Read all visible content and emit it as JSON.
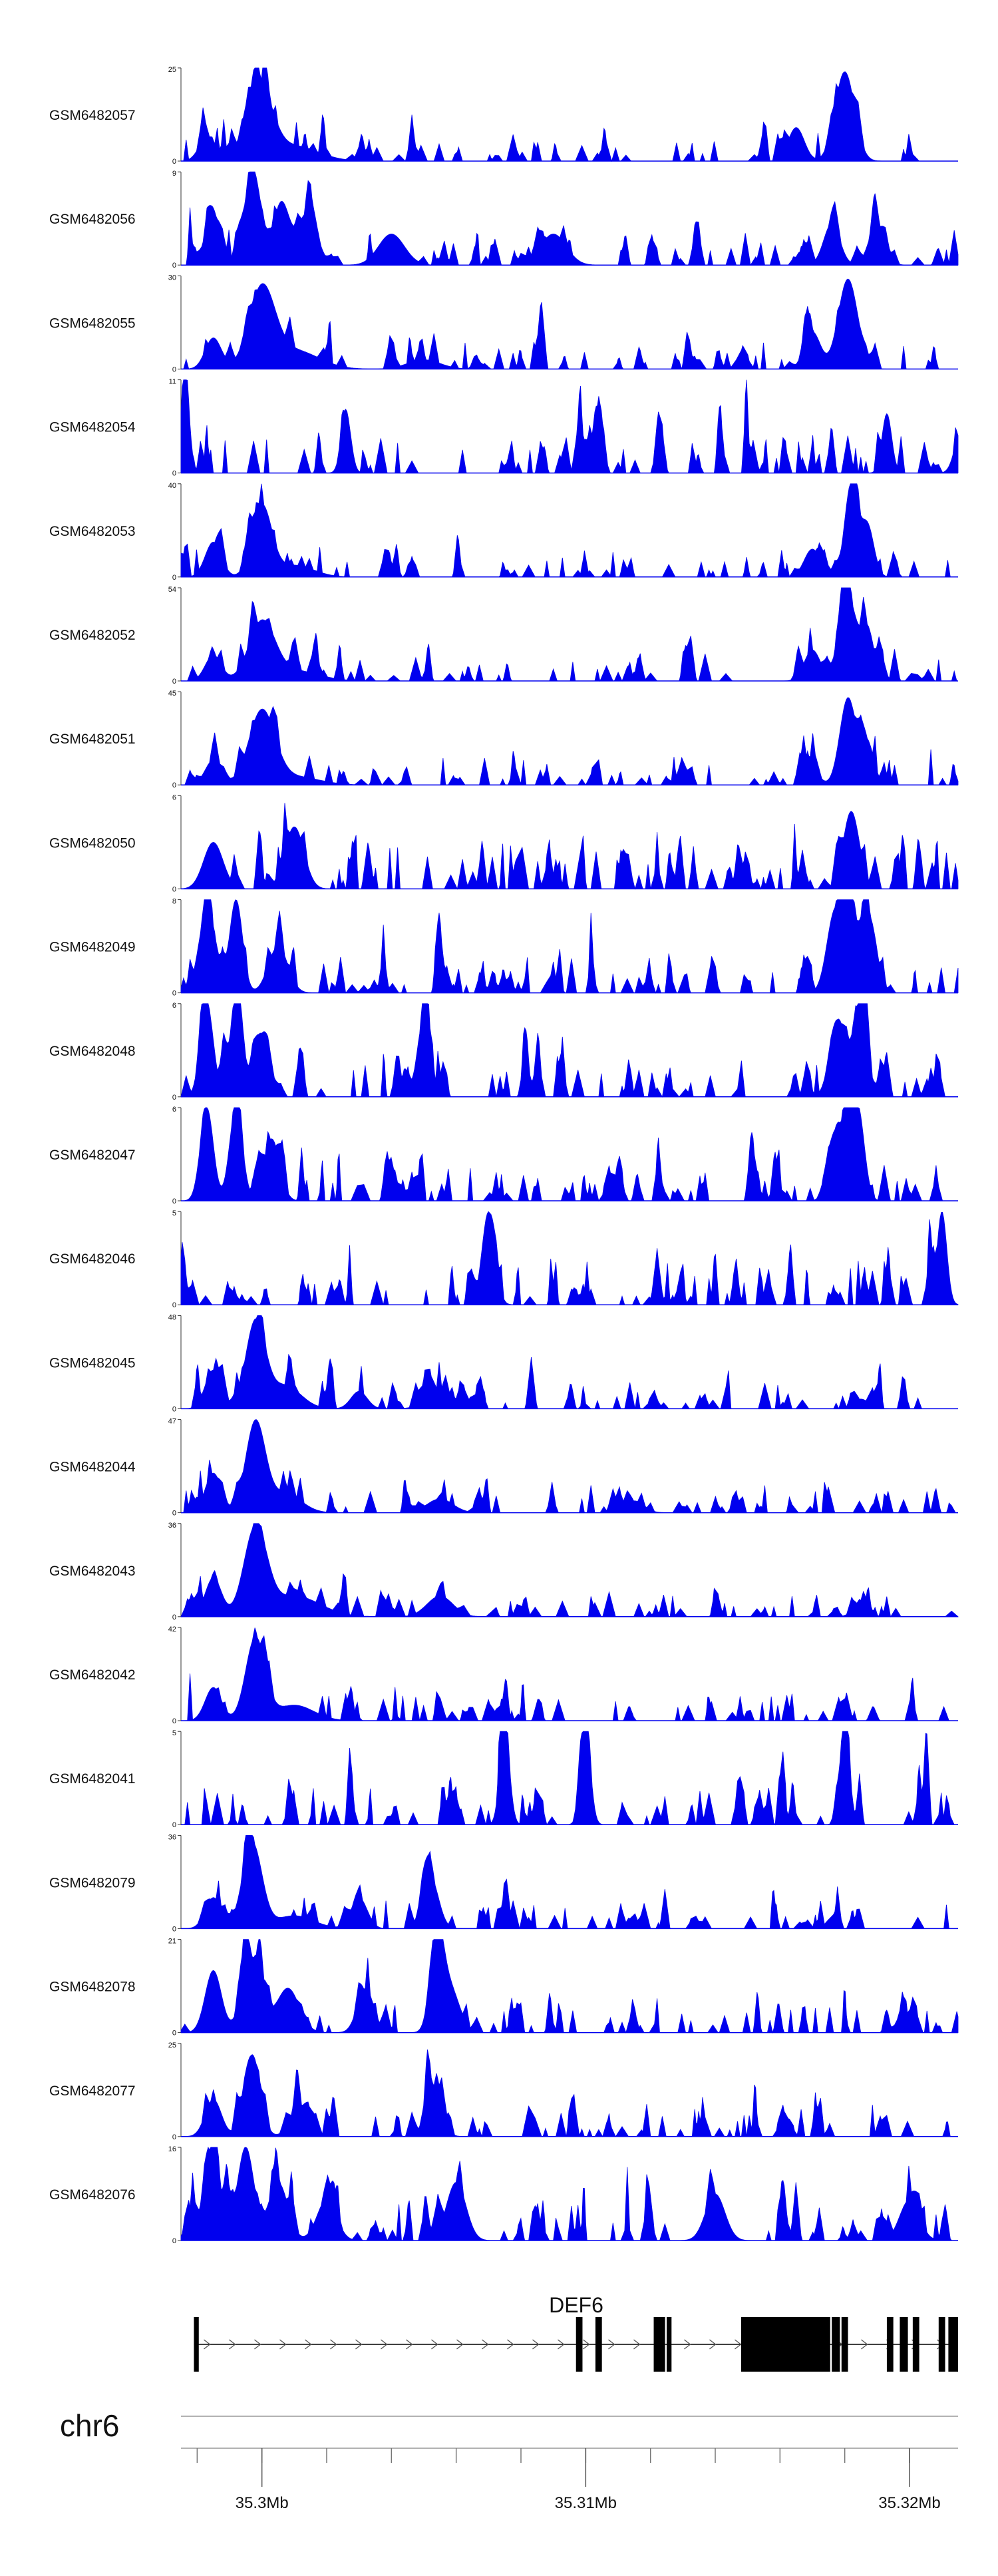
{
  "chart_data": {
    "type": "area",
    "title": "",
    "color": "#0000ee",
    "xlim": [
      35.2975,
      35.3215
    ],
    "x_unit": "Mb",
    "tracks": [
      {
        "name": "GSM6482057",
        "ymax": "25",
        "ymin": "0",
        "peaks": [
          [
            35.2983,
            6,
            0.5
          ],
          [
            35.2999,
            20,
            0.8
          ],
          [
            35.301,
            4,
            1.5
          ],
          [
            35.3165,
            9,
            0.5
          ],
          [
            35.318,
            24,
            0.6
          ]
        ],
        "noise": 3
      },
      {
        "name": "GSM6482056",
        "ymax": "9",
        "ymin": "0",
        "peaks": [
          [
            35.2985,
            5,
            0.5
          ],
          [
            35.2997,
            9,
            0.5
          ],
          [
            35.3006,
            6,
            0.5
          ],
          [
            35.3014,
            5,
            0.6
          ],
          [
            35.304,
            3,
            0.8
          ],
          [
            35.309,
            3,
            0.8
          ],
          [
            35.3176,
            4,
            0.5
          ],
          [
            35.319,
            4,
            0.5
          ]
        ],
        "noise": 3.5
      },
      {
        "name": "GSM6482055",
        "ymax": "30",
        "ymin": "0",
        "peaks": [
          [
            35.2985,
            10,
            0.5
          ],
          [
            35.3,
            25,
            0.8
          ],
          [
            35.301,
            6,
            1.5
          ],
          [
            35.305,
            3,
            1
          ],
          [
            35.317,
            12,
            0.5
          ],
          [
            35.3181,
            29,
            0.6
          ]
        ],
        "noise": 3
      },
      {
        "name": "GSM6482054",
        "ymax": "11",
        "ymin": "0",
        "peaks": [
          [
            35.2976,
            11,
            0.2
          ],
          [
            35.3026,
            7,
            0.3
          ],
          [
            35.31,
            4,
            0.4
          ],
          [
            35.3193,
            7,
            0.3
          ],
          [
            35.3216,
            5,
            0.4
          ]
        ],
        "noise": 4
      },
      {
        "name": "GSM6482053",
        "ymax": "40",
        "ymin": "0",
        "peaks": [
          [
            35.2985,
            15,
            0.5
          ],
          [
            35.3,
            30,
            0.6
          ],
          [
            35.301,
            5,
            1.2
          ],
          [
            35.317,
            12,
            0.5
          ],
          [
            35.3182,
            40,
            0.4
          ],
          [
            35.3187,
            22,
            0.4
          ]
        ],
        "noise": 3
      },
      {
        "name": "GSM6482052",
        "ymax": "54",
        "ymin": "0",
        "peaks": [
          [
            35.2985,
            15,
            0.5
          ],
          [
            35.3,
            33,
            0.8
          ],
          [
            35.301,
            6,
            1.5
          ],
          [
            35.317,
            18,
            0.5
          ],
          [
            35.3181,
            49,
            0.5
          ],
          [
            35.3187,
            30,
            0.4
          ]
        ],
        "noise": 3
      },
      {
        "name": "GSM6482051",
        "ymax": "45",
        "ymin": "0",
        "peaks": [
          [
            35.2985,
            12,
            0.5
          ],
          [
            35.3,
            35,
            0.8
          ],
          [
            35.301,
            4,
            1.5
          ],
          [
            35.317,
            8,
            0.4
          ],
          [
            35.3181,
            42,
            0.5
          ],
          [
            35.3187,
            20,
            0.4
          ]
        ],
        "noise": 3
      },
      {
        "name": "GSM6482050",
        "ymax": "6",
        "ymin": "0",
        "peaks": [
          [
            35.2985,
            3,
            0.6
          ],
          [
            35.301,
            4,
            0.6
          ],
          [
            35.3182,
            5,
            0.5
          ]
        ],
        "noise": 4.5
      },
      {
        "name": "GSM6482049",
        "ymax": "8",
        "ymin": "0",
        "peaks": [
          [
            35.2983,
            7,
            0.5
          ],
          [
            35.2992,
            8,
            0.4
          ],
          [
            35.3005,
            4,
            0.6
          ],
          [
            35.3177,
            7,
            0.5
          ],
          [
            35.3182,
            8,
            0.4
          ],
          [
            35.3188,
            6,
            0.4
          ]
        ],
        "noise": 4
      },
      {
        "name": "GSM6482048",
        "ymax": "6",
        "ymin": "0",
        "peaks": [
          [
            35.2983,
            6,
            0.4
          ],
          [
            35.2992,
            5,
            0.4
          ],
          [
            35.3,
            4,
            0.5
          ],
          [
            35.305,
            5,
            0.4
          ],
          [
            35.3178,
            5,
            0.5
          ],
          [
            35.3185,
            6,
            0.4
          ]
        ],
        "noise": 4
      },
      {
        "name": "GSM6482047",
        "ymax": "6",
        "ymin": "0",
        "peaks": [
          [
            35.2983,
            6,
            0.4
          ],
          [
            35.2992,
            6,
            0.4
          ],
          [
            35.3003,
            4,
            0.5
          ],
          [
            35.3178,
            5,
            0.5
          ],
          [
            35.3184,
            6,
            0.4
          ]
        ],
        "noise": 4
      },
      {
        "name": "GSM6482046",
        "ymax": "5",
        "ymin": "0",
        "peaks": [
          [
            35.307,
            5,
            0.4
          ],
          [
            35.321,
            5,
            0.3
          ]
        ],
        "noise": 4.2
      },
      {
        "name": "GSM6482045",
        "ymax": "48",
        "ymin": "0",
        "peaks": [
          [
            35.2985,
            20,
            0.5
          ],
          [
            35.2998,
            44,
            0.6
          ],
          [
            35.3007,
            12,
            1
          ],
          [
            35.303,
            9,
            0.5
          ],
          [
            35.3055,
            11,
            0.8
          ],
          [
            35.3185,
            5,
            0.5
          ]
        ],
        "noise": 3
      },
      {
        "name": "GSM6482044",
        "ymax": "47",
        "ymin": "0",
        "peaks": [
          [
            35.2985,
            20,
            0.5
          ],
          [
            35.2998,
            45,
            0.6
          ],
          [
            35.3007,
            10,
            1
          ],
          [
            35.3055,
            7,
            0.8
          ],
          [
            35.3115,
            6,
            0.6
          ]
        ],
        "noise": 3
      },
      {
        "name": "GSM6482043",
        "ymax": "36",
        "ymin": "0",
        "peaks": [
          [
            35.2985,
            15,
            0.5
          ],
          [
            35.2998,
            33,
            0.7
          ],
          [
            35.301,
            8,
            1.6
          ],
          [
            35.3055,
            8,
            0.8
          ],
          [
            35.3185,
            4,
            0.5
          ]
        ],
        "noise": 3
      },
      {
        "name": "GSM6482042",
        "ymax": "42",
        "ymin": "0",
        "peaks": [
          [
            35.2985,
            15,
            0.5
          ],
          [
            35.2998,
            37,
            0.6
          ],
          [
            35.301,
            7,
            1.2
          ]
        ],
        "noise": 3
      },
      {
        "name": "GSM6482041",
        "ymax": "5",
        "ymin": "0",
        "peaks": [
          [
            35.3075,
            5,
            0.3
          ],
          [
            35.31,
            5,
            0.3
          ],
          [
            35.318,
            5,
            0.3
          ]
        ],
        "noise": 4.2
      },
      {
        "name": "GSM6482079",
        "ymax": "36",
        "ymin": "0",
        "peaks": [
          [
            35.2985,
            12,
            0.5
          ],
          [
            35.2997,
            33,
            0.6
          ],
          [
            35.303,
            12,
            0.5
          ],
          [
            35.3052,
            20,
            0.5
          ],
          [
            35.301,
            5,
            1.2
          ]
        ],
        "noise": 3
      },
      {
        "name": "GSM6482078",
        "ymax": "21",
        "ymin": "0",
        "peaks": [
          [
            35.2985,
            14,
            0.5
          ],
          [
            35.2997,
            17,
            0.6
          ],
          [
            35.3008,
            10,
            0.7
          ],
          [
            35.3032,
            10,
            0.5
          ],
          [
            35.3054,
            21,
            0.4
          ],
          [
            35.3058,
            10,
            0.6
          ]
        ],
        "noise": 3.5
      },
      {
        "name": "GSM6482077",
        "ymax": "25",
        "ymin": "0",
        "peaks": [
          [
            35.2985,
            10,
            0.5
          ],
          [
            35.2997,
            22,
            0.5
          ],
          [
            35.3012,
            8,
            0.6
          ],
          [
            35.3053,
            12,
            0.5
          ]
        ],
        "noise": 3.5
      },
      {
        "name": "GSM6482076",
        "ymax": "16",
        "ymin": "0",
        "peaks": [
          [
            35.2985,
            12,
            0.6
          ],
          [
            35.2995,
            16,
            0.5
          ],
          [
            35.3005,
            10,
            0.6
          ],
          [
            35.302,
            7,
            0.6
          ],
          [
            35.306,
            10,
            0.6
          ],
          [
            35.314,
            8,
            0.6
          ],
          [
            35.32,
            7,
            0.6
          ]
        ],
        "noise": 4
      }
    ],
    "gene": {
      "name": "DEF6",
      "strand": "+",
      "chr": "chr6",
      "start": 35.2979,
      "end": 35.3215,
      "exons": [
        [
          35.2979,
          35.29805
        ],
        [
          35.3097,
          35.3099
        ],
        [
          35.3103,
          35.3105
        ],
        [
          35.3121,
          35.31245
        ],
        [
          35.3125,
          35.31265
        ],
        [
          35.3148,
          35.31755
        ],
        [
          35.3176,
          35.31785
        ],
        [
          35.3179,
          35.3181
        ],
        [
          35.3193,
          35.3195
        ],
        [
          35.3197,
          35.31995
        ],
        [
          35.3201,
          35.3203
        ],
        [
          35.3209,
          35.3211
        ],
        [
          35.3212,
          35.3215
        ]
      ]
    },
    "axis": {
      "minor_ticks": [
        35.298,
        35.3,
        35.302,
        35.304,
        35.306,
        35.308,
        35.31,
        35.312,
        35.314,
        35.316,
        35.318,
        35.32
      ],
      "major_ticks": [
        35.3,
        35.31,
        35.32
      ],
      "tick_labels": [
        "35.3Mb",
        "35.31Mb",
        "35.32Mb"
      ]
    }
  }
}
